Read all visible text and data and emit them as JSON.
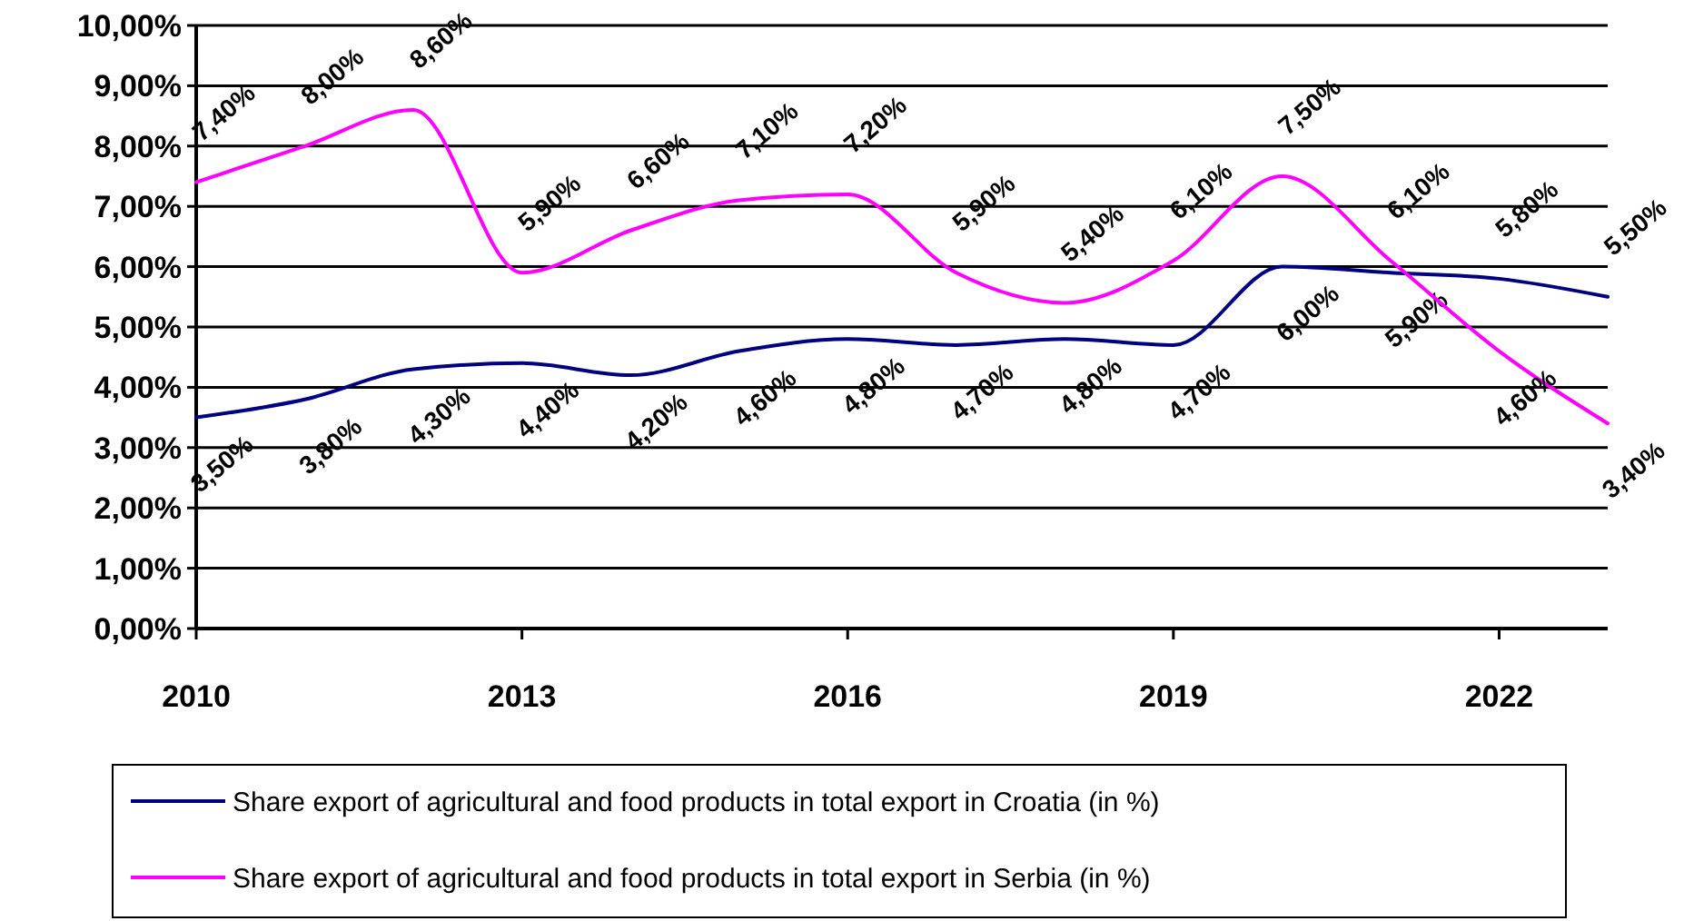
{
  "chart_data": {
    "type": "line",
    "x": [
      "2010",
      "2011",
      "2012",
      "2013",
      "2014",
      "2015",
      "2016",
      "2017",
      "2018",
      "2019",
      "2020",
      "2021",
      "2022",
      "2023"
    ],
    "xlim": [
      "2010",
      "2023"
    ],
    "xticks": [
      {
        "value": "2010",
        "label": "2010"
      },
      {
        "value": "2013",
        "label": "2013"
      },
      {
        "value": "2016",
        "label": "2016"
      },
      {
        "value": "2019",
        "label": "2019"
      },
      {
        "value": "2022",
        "label": "2022"
      }
    ],
    "ylim": [
      0,
      10
    ],
    "yticks": [
      {
        "value": 0,
        "label": "0,00%"
      },
      {
        "value": 1,
        "label": "1,00%"
      },
      {
        "value": 2,
        "label": "2,00%"
      },
      {
        "value": 3,
        "label": "3,00%"
      },
      {
        "value": 4,
        "label": "4,00%"
      },
      {
        "value": 5,
        "label": "5,00%"
      },
      {
        "value": 6,
        "label": "6,00%"
      },
      {
        "value": 7,
        "label": "7,00%"
      },
      {
        "value": 8,
        "label": "8,00%"
      },
      {
        "value": 9,
        "label": "9,00%"
      },
      {
        "value": 10,
        "label": "10,00%"
      }
    ],
    "grid": "y",
    "legend": "bottom",
    "marker": "none",
    "line_style": "solid",
    "series": [
      {
        "name": "Share export of agricultural and food products in total export in Croatia (in %)",
        "color": "#000080",
        "values": [
          3.5,
          3.8,
          4.3,
          4.4,
          4.2,
          4.6,
          4.8,
          4.7,
          4.8,
          4.7,
          6.0,
          5.9,
          5.8,
          5.5
        ],
        "value_labels": [
          "3,50%",
          "3,80%",
          "4,30%",
          "4,40%",
          "4,20%",
          "4,60%",
          "4,80%",
          "4,70%",
          "4,80%",
          "4,70%",
          "6,00%",
          "5,90%",
          "5,80%",
          "5,50%"
        ]
      },
      {
        "name": "Share export of agricultural and food products in total export in Serbia (in %)",
        "color": "#ff00ff",
        "values": [
          7.4,
          8.0,
          8.6,
          5.9,
          6.6,
          7.1,
          7.2,
          5.9,
          5.4,
          6.1,
          7.5,
          6.1,
          4.6,
          3.4
        ],
        "value_labels": [
          "7,40%",
          "8,00%",
          "8,60%",
          "5,90%",
          "6,60%",
          "7,10%",
          "7,20%",
          "5,90%",
          "5,40%",
          "6,10%",
          "7,50%",
          "6,10%",
          "4,60%",
          "3,40%"
        ]
      }
    ]
  }
}
